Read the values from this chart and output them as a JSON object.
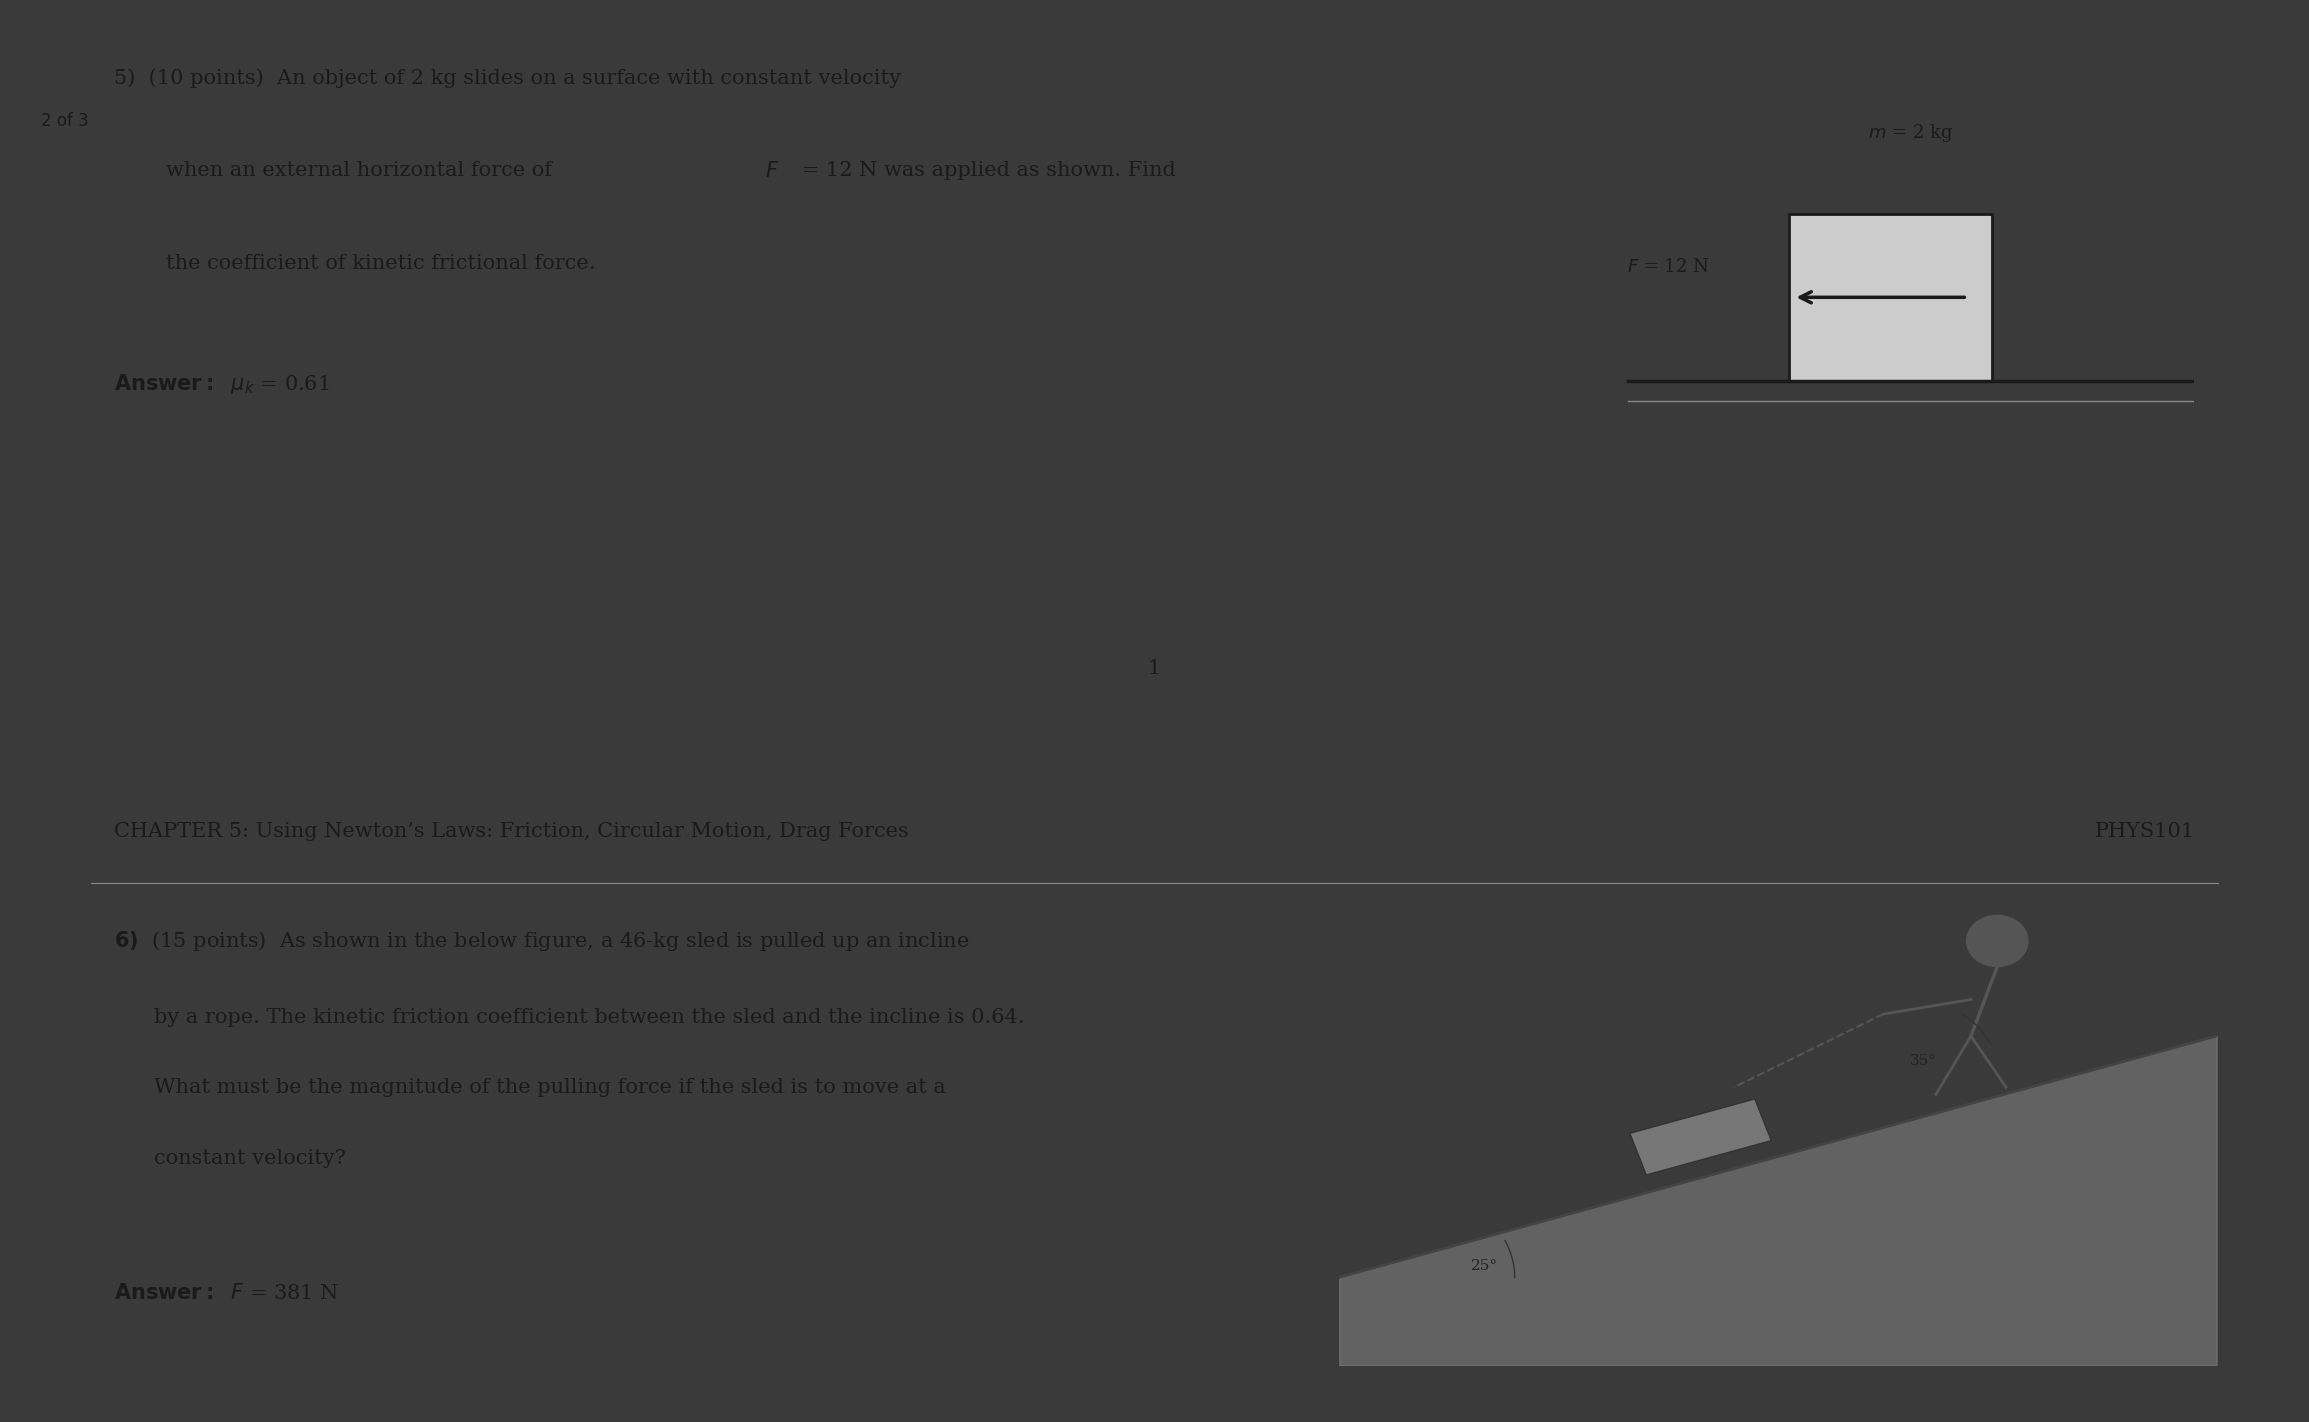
{
  "page_bg": "#ffffff",
  "top_section_bg": "#ffffff",
  "bottom_section_bg": "#ffffff",
  "divider_color": "#2d2d2d",
  "border_color": "#2d2d2d",
  "page_num_label": "2 of 3",
  "page_center_label": "1",
  "q5_number": "5)",
  "q5_points": "(10 points)",
  "q5_text": "An object of 2 kg slides on a surface with constant velocity\nwhen an external horizontal force of",
  "q5_text_F": "F",
  "q5_text_mid": " = 12 N was applied as shown. Find\nthe coefficient of kinetic frictional force.",
  "q5_answer_label": "Answer:",
  "q5_answer_mu": "μ",
  "q5_answer_k": "k",
  "q5_answer_value": " = 0.61",
  "diagram_m_label": "m = 2 kg",
  "diagram_F_label": "F = 12 N",
  "chapter_header": "CHAPTER 5: Using Newton’s Laws: Friction, Circular Motion, Drag Forces",
  "course_code": "PHYS101",
  "q6_number": "6)",
  "q6_points": "(15 points)",
  "q6_text": "As shown in the below figure, a 46-kg sled is pulled up an incline\nby a rope. The kinetic friction coefficient between the sled and the incline is 0.64.\nWhat must be the magnitude of the pulling force if the sled is to move at a\nconstant velocity?",
  "q6_answer_label": "Answer:",
  "q6_answer_F": "F",
  "q6_answer_value": " = 381 N",
  "text_color": "#1a1a1a",
  "light_gray": "#d0d0d0",
  "box_fill": "#cccccc",
  "box_edge": "#1a1a1a"
}
